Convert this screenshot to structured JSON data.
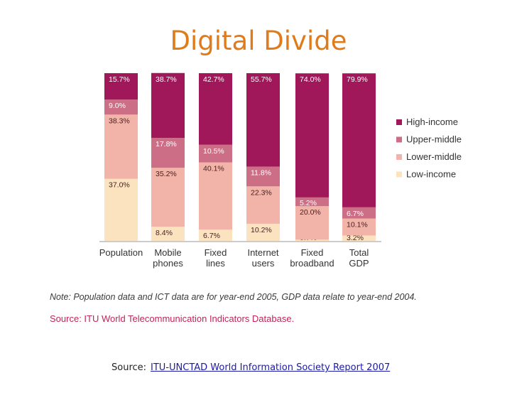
{
  "page_title": "Digital Divide",
  "note": "Note: Population data and ICT data are for year-end 2005, GDP data relate to year-end 2004.",
  "database_source": "Source: ITU World Telecommunication Indicators Database.",
  "source": {
    "label": "Source:",
    "link_text": "ITU-UNCTAD World Information Society Report 2007"
  },
  "colors": {
    "title": "#e07b1a",
    "high_income": "#a0175a",
    "upper_middle": "#cc6e86",
    "lower_middle": "#f2b3a8",
    "low_income": "#fbe3c0"
  },
  "chart_data": {
    "type": "bar",
    "stacked": true,
    "normalized_percent": true,
    "ylim": [
      0,
      100
    ],
    "grid": false,
    "legend_position": "right",
    "categories": [
      "Population",
      "Mobile phones",
      "Fixed lines",
      "Internet users",
      "Fixed broadband",
      "Total GDP"
    ],
    "series": [
      {
        "name": "Low-income",
        "color": "#fbe3c0",
        "values": [
          37.0,
          8.4,
          6.7,
          10.2,
          0.7,
          3.2
        ],
        "labels": [
          "37.0%",
          "8.4%",
          "6.7%",
          "10.2%",
          "0.7%",
          "3.2%"
        ]
      },
      {
        "name": "Lower-middle",
        "color": "#f2b3a8",
        "values": [
          38.3,
          35.2,
          40.1,
          22.3,
          20.0,
          10.1
        ],
        "labels": [
          "38.3%",
          "35.2%",
          "40.1%",
          "22.3%",
          "20.0%",
          "10.1%"
        ]
      },
      {
        "name": "Upper-middle",
        "color": "#cc6e86",
        "values": [
          9.0,
          17.8,
          10.5,
          11.8,
          5.2,
          6.7
        ],
        "labels": [
          "9.0%",
          "17.8%",
          "10.5%",
          "11.8%",
          "5.2%",
          "6.7%"
        ]
      },
      {
        "name": "High-income",
        "color": "#a0175a",
        "values": [
          15.7,
          38.7,
          42.7,
          55.7,
          74.0,
          79.9
        ],
        "labels": [
          "15.7%",
          "38.7%",
          "42.7%",
          "55.7%",
          "74.0%",
          "79.9%"
        ]
      }
    ],
    "legend_order": [
      "High-income",
      "Upper-middle",
      "Lower-middle",
      "Low-income"
    ]
  }
}
